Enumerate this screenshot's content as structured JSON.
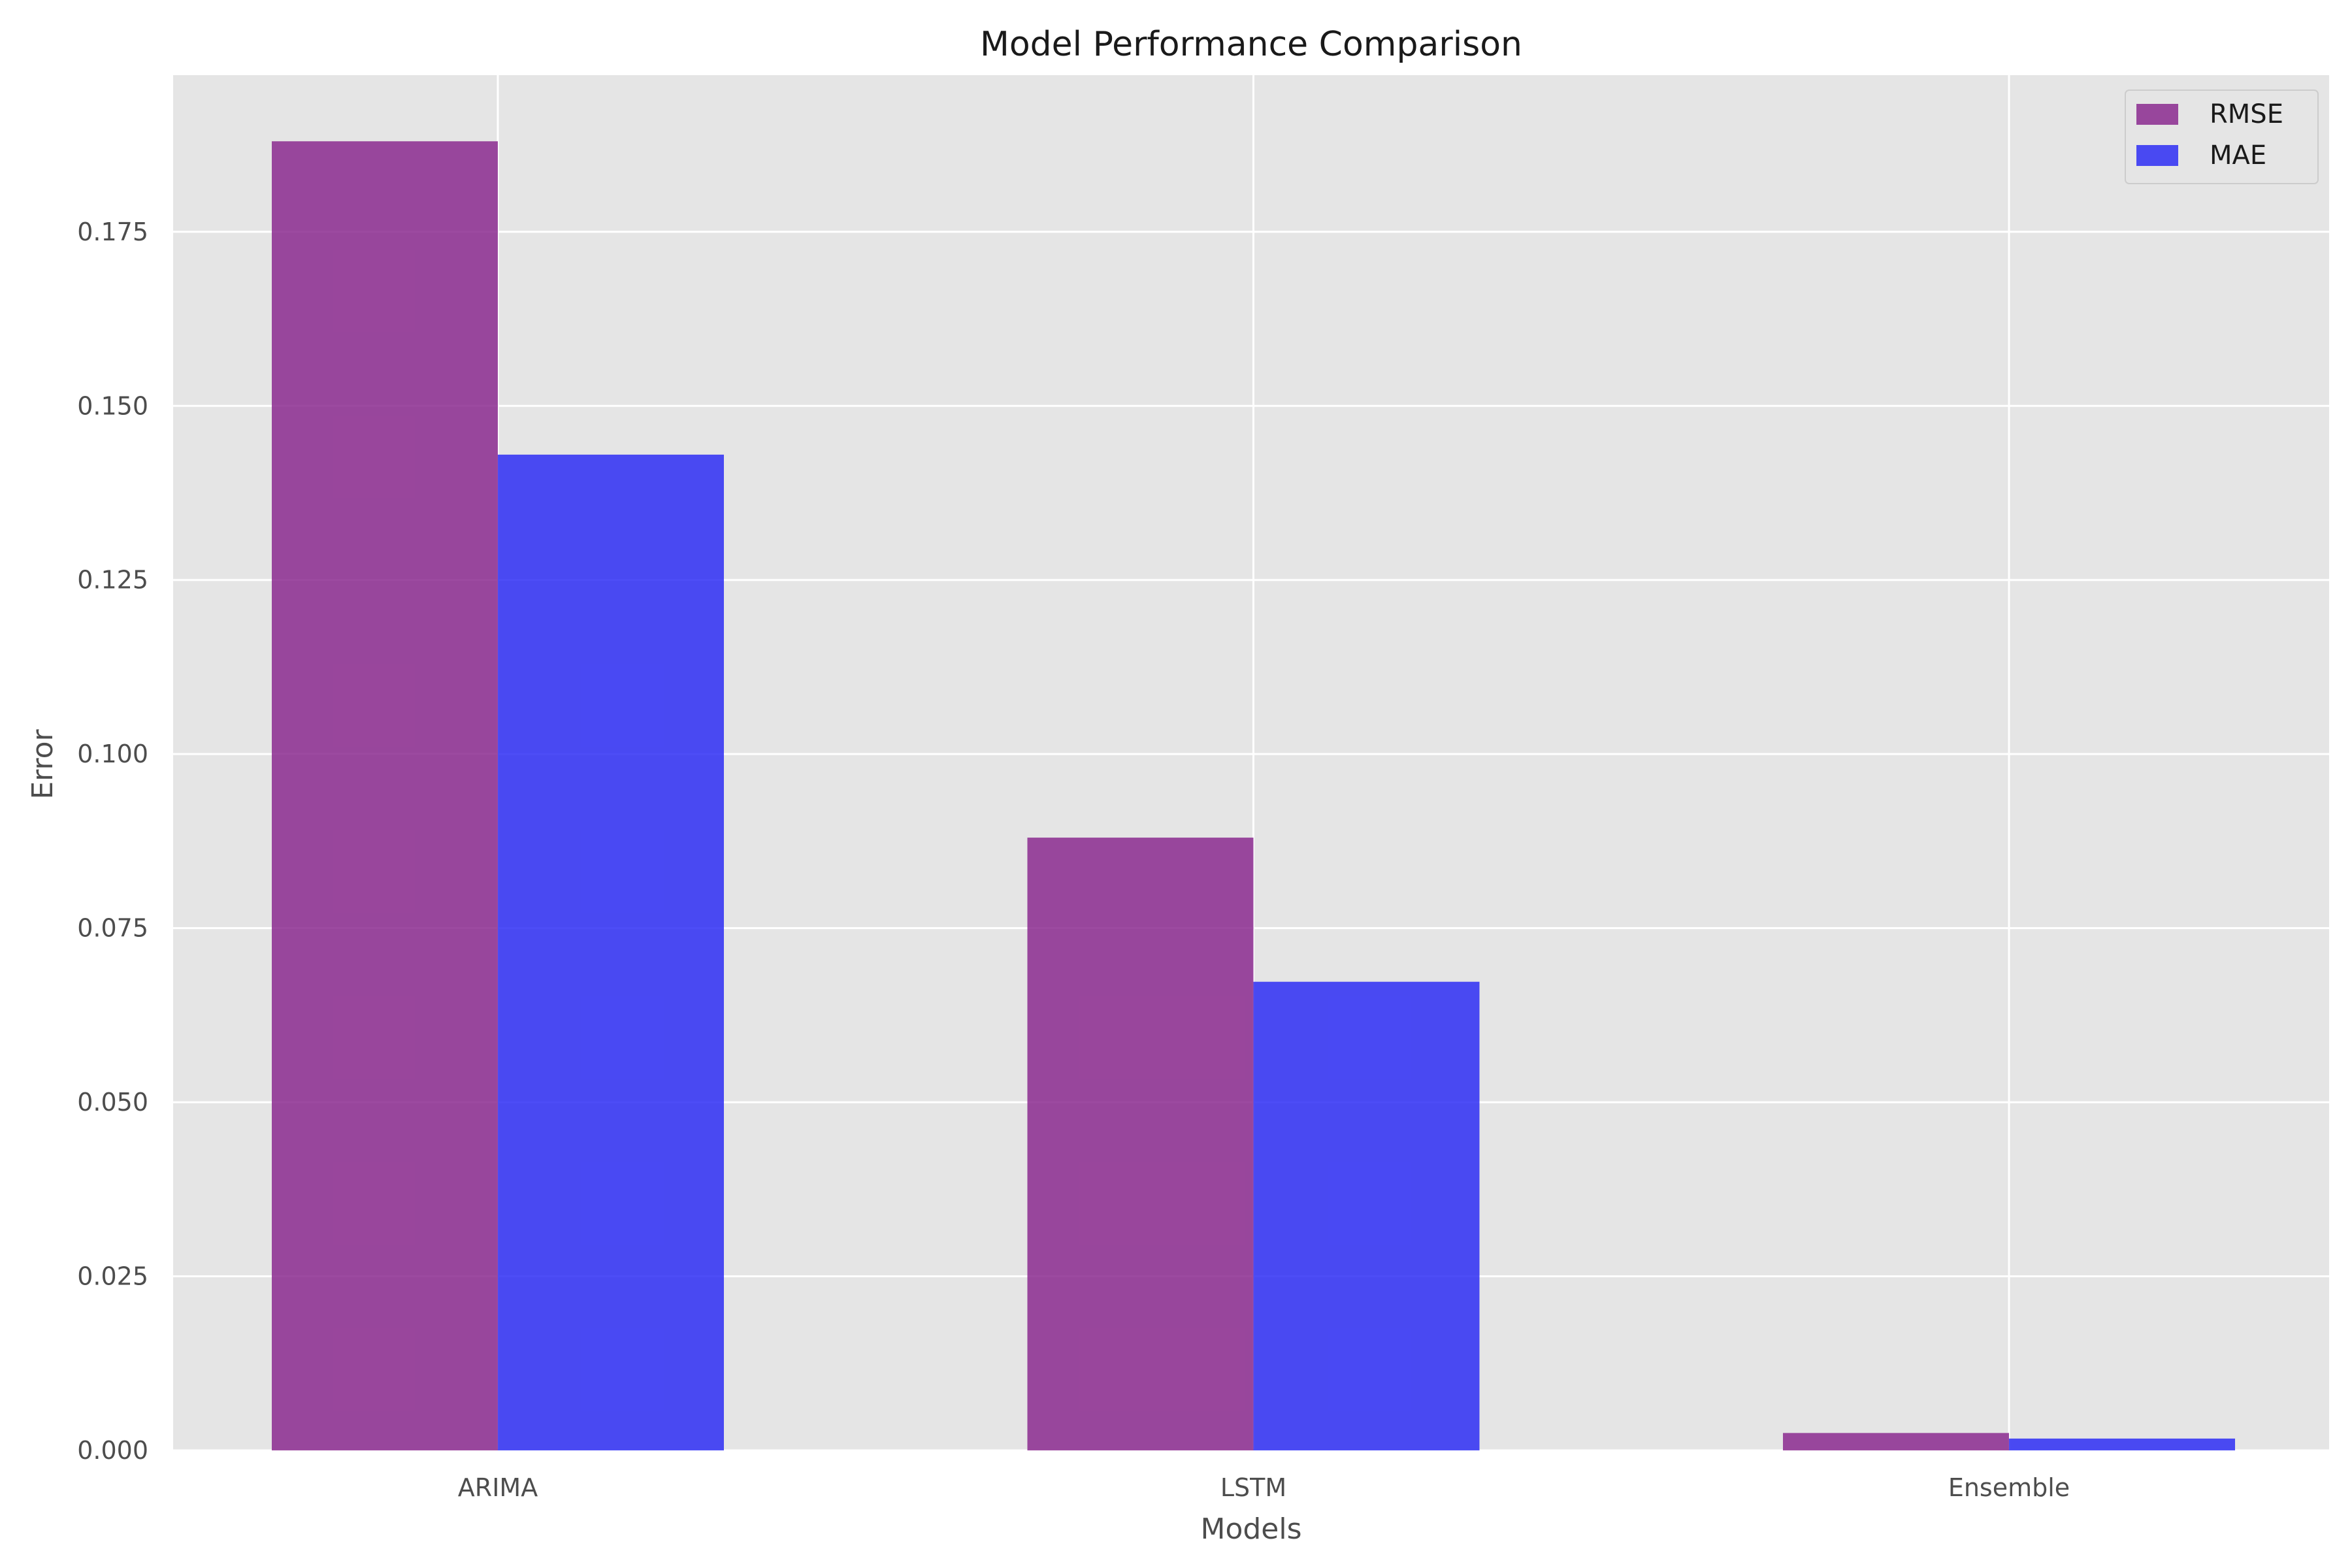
{
  "chart_data": {
    "type": "bar",
    "title": "Model Performance Comparison",
    "xlabel": "Models",
    "ylabel": "Error",
    "categories": [
      "ARIMA",
      "LSTM",
      "Ensemble"
    ],
    "series": [
      {
        "name": "RMSE",
        "color": "#8b2a8f",
        "values": [
          0.188,
          0.088,
          0.0025
        ]
      },
      {
        "name": "MAE",
        "color": "#2e2ef5",
        "values": [
          0.143,
          0.0673,
          0.0017
        ]
      }
    ],
    "ylim": [
      0,
      0.1975
    ],
    "yticks": [
      0.0,
      0.025,
      0.05,
      0.075,
      0.1,
      0.125,
      0.15,
      0.175
    ],
    "ytick_labels": [
      "0.000",
      "0.025",
      "0.050",
      "0.075",
      "0.100",
      "0.125",
      "0.150",
      "0.175"
    ],
    "grid": true,
    "legend_position": "top-right",
    "background_color": "#e5e5e5",
    "grid_color": "#ffffff"
  }
}
